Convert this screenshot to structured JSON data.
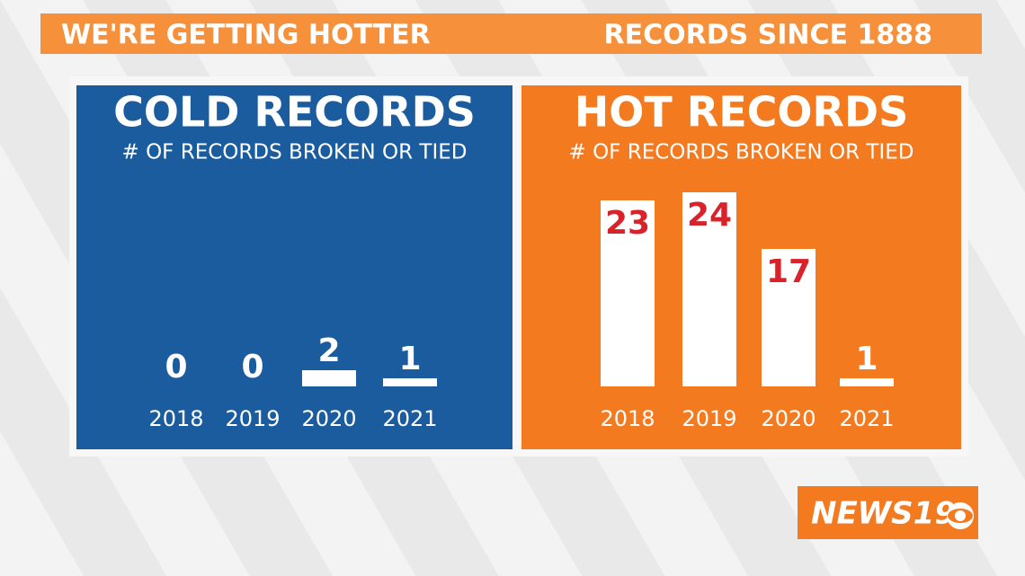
{
  "header": {
    "left": "WE'RE GETTING HOTTER",
    "right": "RECORDS SINCE 1888"
  },
  "logo": "NEWS19",
  "chart_data": [
    {
      "type": "bar",
      "title": "COLD RECORDS",
      "subtitle": "# OF RECORDS BROKEN OR TIED",
      "categories": [
        "2018",
        "2019",
        "2020",
        "2021"
      ],
      "values": [
        0,
        0,
        2,
        1
      ],
      "color": "#ffffff",
      "background": "#1b5c9e",
      "label_color": "#ffffff"
    },
    {
      "type": "bar",
      "title": "HOT RECORDS",
      "subtitle": "# OF RECORDS BROKEN OR TIED",
      "categories": [
        "2018",
        "2019",
        "2020",
        "2021"
      ],
      "values": [
        23,
        24,
        17,
        1
      ],
      "color": "#ffffff",
      "background": "#f47a20",
      "label_color": "#d9232b"
    }
  ]
}
